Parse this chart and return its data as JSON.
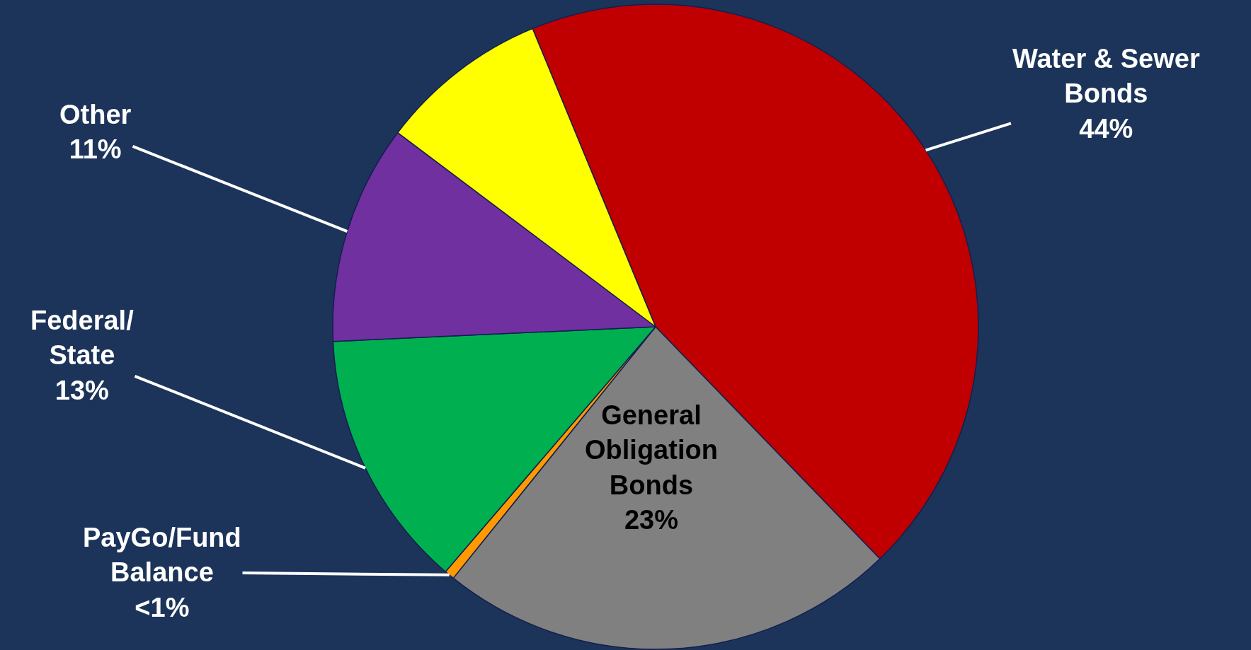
{
  "chart_data": {
    "type": "pie",
    "categories": [
      "Water & Sewer Bonds",
      "General Obligation Bonds",
      "PayGo/Fund Balance",
      "Federal/State",
      "Other",
      null
    ],
    "values": [
      44,
      23,
      0.5,
      13,
      11,
      8.5
    ],
    "value_labels": [
      "44%",
      "23%",
      "<1%",
      "13%",
      "11%",
      null
    ],
    "colors": [
      "#c00000",
      "#808080",
      "#ff9900",
      "#00b050",
      "#7030a0",
      "#ffff00"
    ]
  }
}
